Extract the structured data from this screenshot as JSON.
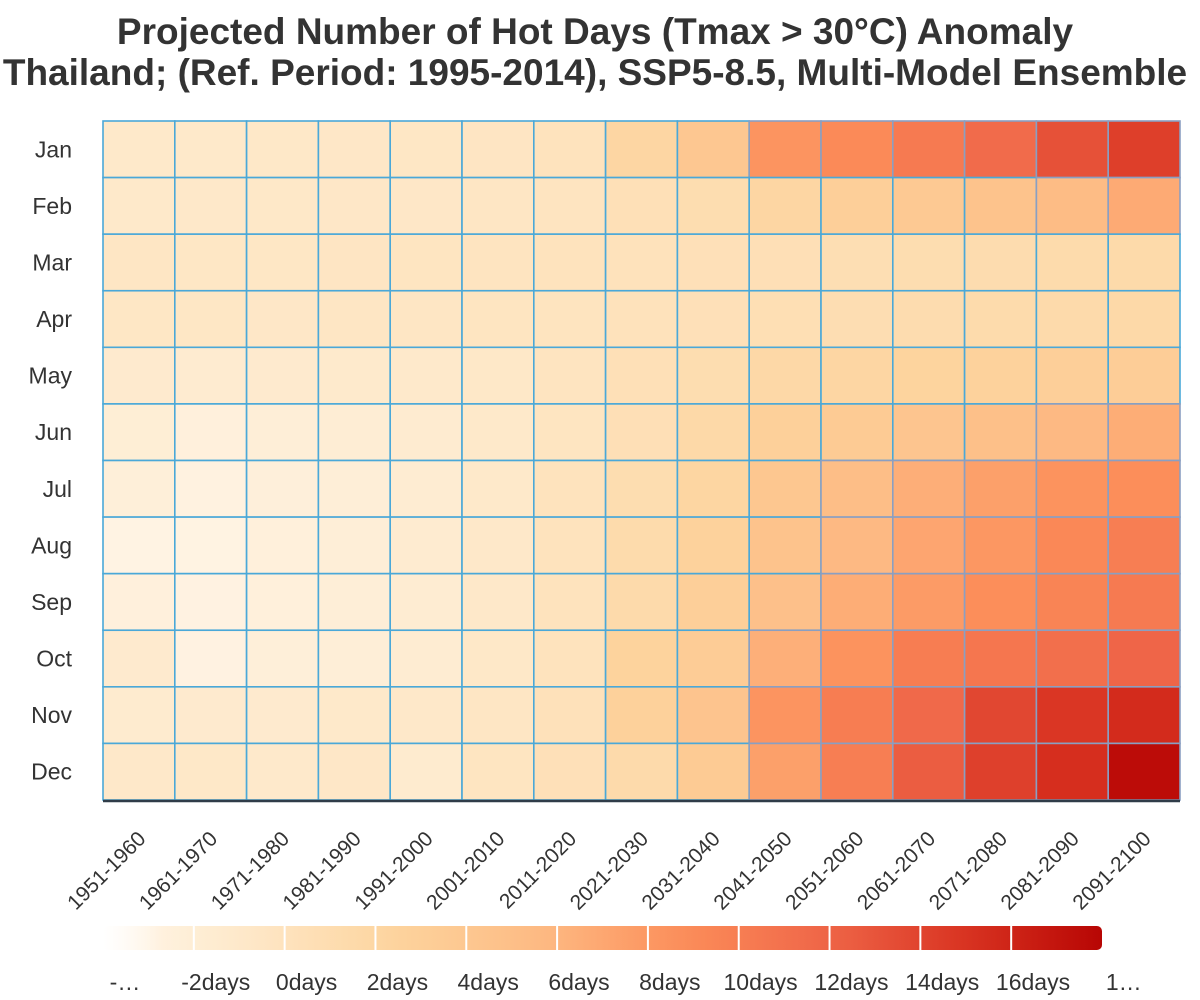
{
  "chart_data": {
    "type": "heatmap",
    "title": "Projected Number of Hot Days (Tmax > 30°C) Anomaly",
    "subtitle": "Thailand; (Ref. Period: 1995-2014), SSP5-8.5, Multi-Model Ensemble",
    "rows": [
      "Jan",
      "Feb",
      "Mar",
      "Apr",
      "May",
      "Jun",
      "Jul",
      "Aug",
      "Sep",
      "Oct",
      "Nov",
      "Dec"
    ],
    "columns": [
      "1951-1960",
      "1961-1970",
      "1971-1980",
      "1981-1990",
      "1991-2000",
      "2001-2010",
      "2011-2020",
      "2021-2030",
      "2031-2040",
      "2041-2050",
      "2051-2060",
      "2061-2070",
      "2071-2080",
      "2081-2090",
      "2091-2100"
    ],
    "values": [
      [
        -1.0,
        -1.0,
        -0.8,
        -0.7,
        -0.6,
        -0.4,
        0.0,
        2.0,
        4.0,
        8.3,
        9.0,
        10.3,
        11.5,
        13.2,
        14.3
      ],
      [
        -1.0,
        -0.9,
        -0.8,
        -0.7,
        -0.7,
        -0.5,
        -0.2,
        0.5,
        1.0,
        2.0,
        3.0,
        3.8,
        4.6,
        5.5,
        6.8
      ],
      [
        -0.5,
        -0.6,
        -0.6,
        -0.4,
        -0.3,
        -0.2,
        0.0,
        0.2,
        0.4,
        0.6,
        0.8,
        1.0,
        1.1,
        1.3,
        1.5
      ],
      [
        -0.6,
        -0.6,
        -0.7,
        -0.5,
        -0.5,
        -0.3,
        -0.1,
        0.2,
        0.4,
        0.7,
        0.9,
        1.1,
        1.3,
        1.4,
        1.6
      ],
      [
        -1.3,
        -1.5,
        -1.3,
        -1.2,
        -1.1,
        -0.8,
        -0.2,
        0.5,
        1.0,
        1.7,
        2.0,
        2.4,
        2.7,
        3.0,
        3.3
      ],
      [
        -2.0,
        -2.6,
        -2.1,
        -1.9,
        -1.5,
        -1.0,
        -0.3,
        0.6,
        1.6,
        2.9,
        3.6,
        4.3,
        5.0,
        5.7,
        6.6
      ],
      [
        -2.3,
        -2.9,
        -2.4,
        -2.1,
        -1.7,
        -1.0,
        0.0,
        1.0,
        2.1,
        4.1,
        5.2,
        6.5,
        7.5,
        8.4,
        8.7
      ],
      [
        -3.2,
        -3.1,
        -2.5,
        -2.1,
        -1.5,
        -0.9,
        0.0,
        1.3,
        2.7,
        4.6,
        5.7,
        7.1,
        8.1,
        9.2,
        10.0
      ],
      [
        -2.6,
        -3.0,
        -2.5,
        -2.1,
        -1.7,
        -0.9,
        0.0,
        1.4,
        3.0,
        4.9,
        6.6,
        7.8,
        8.7,
        9.5,
        10.3
      ],
      [
        -1.3,
        -3.0,
        -2.3,
        -2.1,
        -1.7,
        -0.8,
        0.0,
        2.5,
        3.4,
        6.4,
        8.4,
        10.1,
        10.6,
        11.2,
        12.0
      ],
      [
        -1.4,
        -1.3,
        -1.3,
        -1.0,
        -0.9,
        -0.5,
        0.3,
        2.8,
        4.4,
        8.3,
        10.1,
        11.7,
        13.8,
        14.8,
        15.5
      ],
      [
        -0.9,
        -0.8,
        -1.1,
        -0.7,
        -1.4,
        -0.3,
        0.4,
        1.4,
        3.6,
        7.5,
        10.0,
        12.5,
        14.2,
        15.3,
        17.6
      ]
    ],
    "colorbar": {
      "ticks": [
        "-…",
        "-2days",
        "0days",
        "2days",
        "4days",
        "6days",
        "8days",
        "10days",
        "12days",
        "14days",
        "16days",
        "1…"
      ],
      "range": [
        -4,
        18
      ],
      "colormap": "OrRd"
    },
    "grid": true
  }
}
